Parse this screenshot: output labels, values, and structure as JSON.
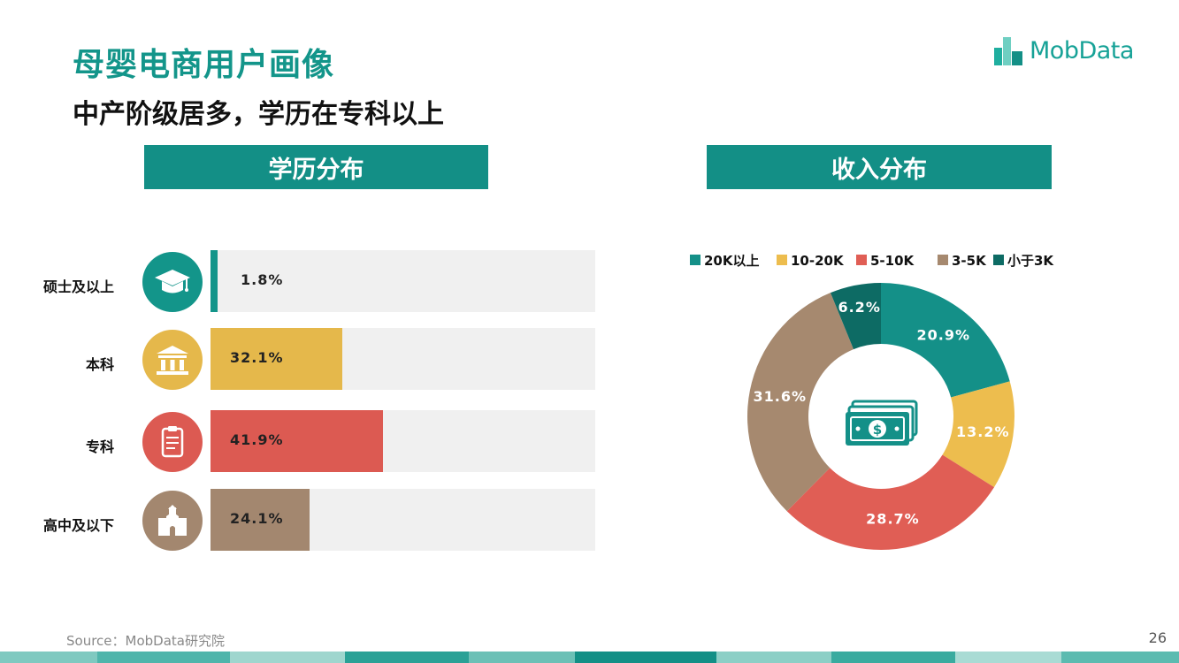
{
  "page": {
    "title": "母婴电商用户画像",
    "subtitle": "中产阶级居多，学历在专科以上",
    "logo_text": "MobData",
    "source": "Source：MobData研究院",
    "page_number": "26",
    "accent_color": "#13958a"
  },
  "chart_data": [
    {
      "type": "bar",
      "title": "学历分布",
      "orientation": "horizontal",
      "categories": [
        "硕士及以上",
        "本科",
        "专科",
        "高中及以下"
      ],
      "values": [
        1.8,
        32.1,
        41.9,
        24.1
      ],
      "value_labels": [
        "1.8%",
        "32.1%",
        "41.9%",
        "24.1%"
      ],
      "colors": [
        "#13958a",
        "#e5b84b",
        "#dc5a52",
        "#a3876f"
      ],
      "icons": [
        "graduation-cap-icon",
        "bank-building-icon",
        "clipboard-icon",
        "school-building-icon"
      ],
      "xlim": [
        0,
        100
      ]
    },
    {
      "type": "pie",
      "title": "收入分布",
      "donut": true,
      "legend_position": "top",
      "center_icon": "money-bills-icon",
      "categories": [
        "20K以上",
        "10-20K",
        "5-10K",
        "3-5K",
        "小于3K"
      ],
      "values": [
        20.9,
        13.2,
        28.7,
        31.6,
        6.2
      ],
      "value_labels": [
        "20.9%",
        "13.2%",
        "28.7%",
        "31.6%",
        "6.2%"
      ],
      "colors": [
        "#149088",
        "#edbd4e",
        "#e05e55",
        "#a6896f",
        "#0d6b64"
      ]
    }
  ]
}
